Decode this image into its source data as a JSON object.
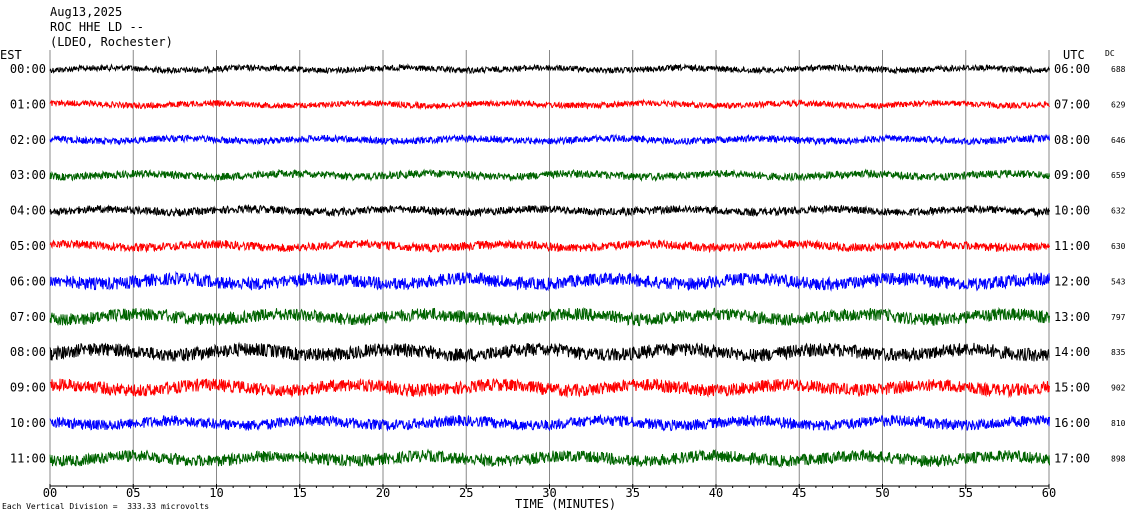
{
  "header": {
    "date": "Aug13,2025",
    "station": "ROC HHE LD --",
    "network": "(LDEO, Rochester)"
  },
  "left_axis_label": "EST",
  "right_axis_label": "UTC",
  "dc_label": "DC",
  "footer": {
    "vertical_division": "Each Vertical Division =  333.33 microvolts",
    "xlabel": "TIME (MINUTES)"
  },
  "chart_data": {
    "type": "line",
    "title": "ROC HHE LD --",
    "xlabel": "TIME (MINUTES)",
    "ylabel": "",
    "xlim": [
      0,
      60
    ],
    "x_ticks": [
      "00",
      "05",
      "10",
      "15",
      "20",
      "25",
      "30",
      "35",
      "40",
      "45",
      "50",
      "55",
      "60"
    ],
    "grid": true,
    "rows": [
      {
        "est": "00:00",
        "utc": "06:00",
        "dc": "688",
        "color": "#000000"
      },
      {
        "est": "01:00",
        "utc": "07:00",
        "dc": "629",
        "color": "#ff0000"
      },
      {
        "est": "02:00",
        "utc": "08:00",
        "dc": "646",
        "color": "#0000ff"
      },
      {
        "est": "03:00",
        "utc": "09:00",
        "dc": "659",
        "color": "#006400"
      },
      {
        "est": "04:00",
        "utc": "10:00",
        "dc": "632",
        "color": "#000000"
      },
      {
        "est": "05:00",
        "utc": "11:00",
        "dc": "630",
        "color": "#ff0000"
      },
      {
        "est": "06:00",
        "utc": "12:00",
        "dc": "543",
        "color": "#0000ff"
      },
      {
        "est": "07:00",
        "utc": "13:00",
        "dc": "797",
        "color": "#006400"
      },
      {
        "est": "08:00",
        "utc": "14:00",
        "dc": "835",
        "color": "#000000"
      },
      {
        "est": "09:00",
        "utc": "15:00",
        "dc": "902",
        "color": "#ff0000"
      },
      {
        "est": "10:00",
        "utc": "16:00",
        "dc": "810",
        "color": "#0000ff"
      },
      {
        "est": "11:00",
        "utc": "17:00",
        "dc": "898",
        "color": "#006400"
      }
    ],
    "amplitude": [
      0.35,
      0.35,
      0.4,
      0.45,
      0.45,
      0.5,
      0.75,
      0.75,
      0.8,
      0.75,
      0.65,
      0.7
    ]
  }
}
